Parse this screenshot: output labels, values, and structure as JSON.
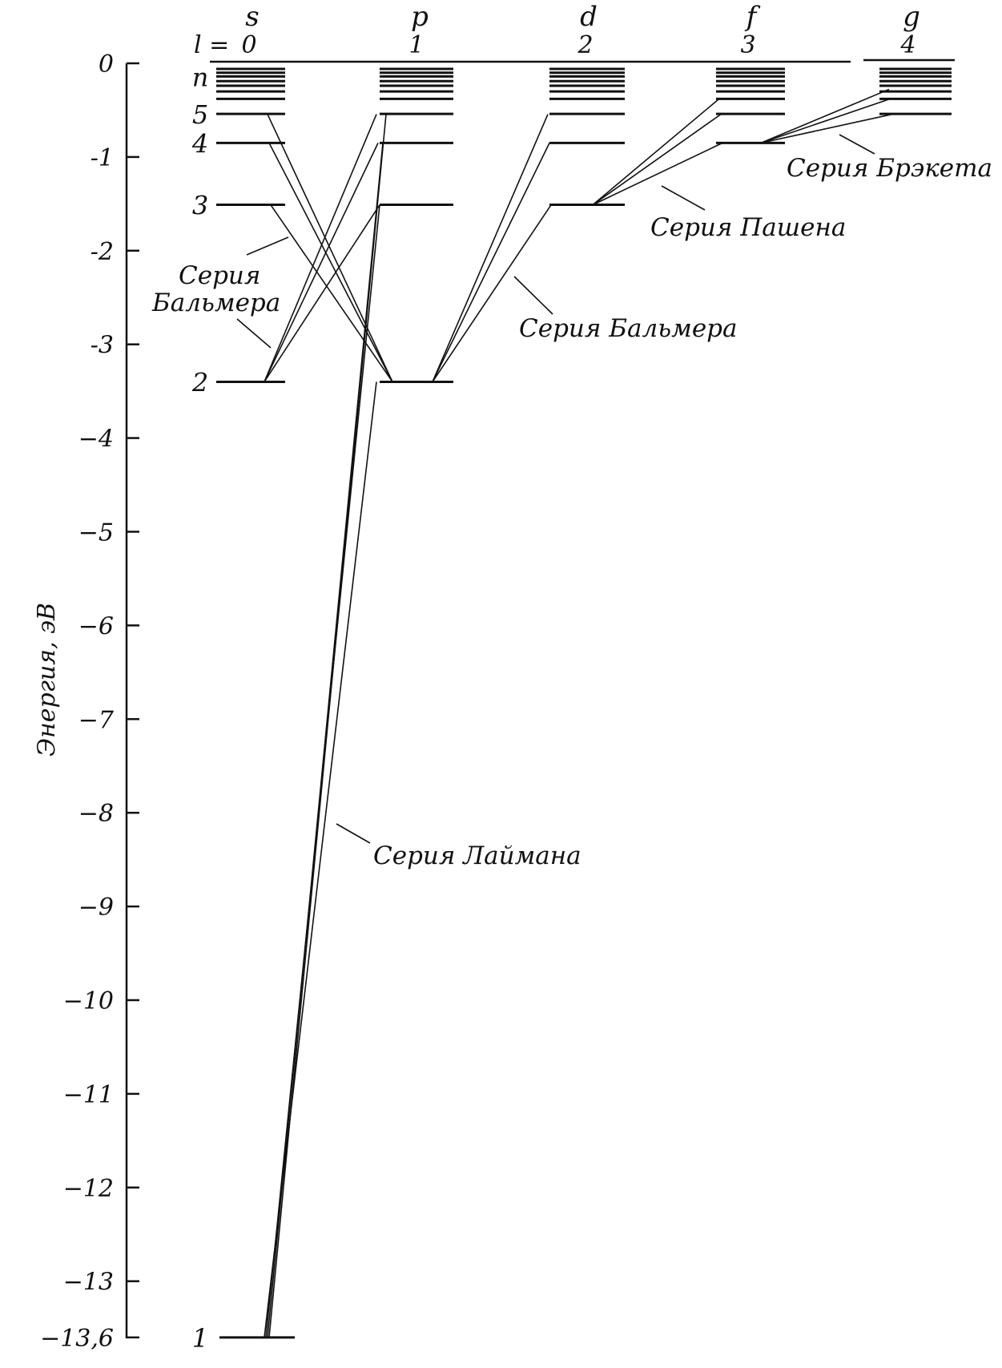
{
  "axis": {
    "title": "Энергия, эВ",
    "ticks": [
      {
        "value": 0,
        "label": "0"
      },
      {
        "value": -1,
        "label": "-1"
      },
      {
        "value": -2,
        "label": "-2"
      },
      {
        "value": -3,
        "label": "-3"
      },
      {
        "value": -4,
        "label": "−4"
      },
      {
        "value": -5,
        "label": "−5"
      },
      {
        "value": -6,
        "label": "−6"
      },
      {
        "value": -7,
        "label": "−7"
      },
      {
        "value": -8,
        "label": "−8"
      },
      {
        "value": -9,
        "label": "−9"
      },
      {
        "value": -10,
        "label": "−10"
      },
      {
        "value": -11,
        "label": "−11"
      },
      {
        "value": -12,
        "label": "−12"
      },
      {
        "value": -13,
        "label": "−13"
      },
      {
        "value": -13.6,
        "label": "−13,6"
      }
    ],
    "range": [
      -13.6,
      0
    ]
  },
  "l_prefix": "l =",
  "orbitals": [
    {
      "letter": "s",
      "l": "0"
    },
    {
      "letter": "p",
      "l": "1"
    },
    {
      "letter": "d",
      "l": "2"
    },
    {
      "letter": "f",
      "l": "3"
    },
    {
      "letter": "g",
      "l": "4"
    }
  ],
  "n_labels": [
    {
      "n": "n",
      "energy": -0.14
    },
    {
      "n": "5",
      "energy": -0.54
    },
    {
      "n": "4",
      "energy": -0.85
    },
    {
      "n": "3",
      "energy": -1.51
    },
    {
      "n": "2",
      "energy": -3.4
    },
    {
      "n": "1",
      "energy": -13.6
    }
  ],
  "levels": [
    {
      "column": 0,
      "n": 1,
      "energy": -13.6
    },
    {
      "column": 0,
      "n": 2,
      "energy": -3.4
    },
    {
      "column": 0,
      "n": 3,
      "energy": -1.51
    },
    {
      "column": 0,
      "n": 4,
      "energy": -0.85
    },
    {
      "column": 0,
      "n": 5,
      "energy": -0.54
    },
    {
      "column": 1,
      "n": 2,
      "energy": -3.4
    },
    {
      "column": 1,
      "n": 3,
      "energy": -1.51
    },
    {
      "column": 1,
      "n": 4,
      "energy": -0.85
    },
    {
      "column": 1,
      "n": 5,
      "energy": -0.54
    },
    {
      "column": 2,
      "n": 3,
      "energy": -1.51
    },
    {
      "column": 2,
      "n": 4,
      "energy": -0.85
    },
    {
      "column": 2,
      "n": 5,
      "energy": -0.54
    },
    {
      "column": 3,
      "n": 4,
      "energy": -0.85
    },
    {
      "column": 3,
      "n": 5,
      "energy": -0.54
    },
    {
      "column": 4,
      "n": 5,
      "energy": -0.54
    }
  ],
  "series": [
    {
      "name": "Серия Лаймана",
      "transitions": [
        {
          "from": [
            1,
            2
          ],
          "to": [
            0,
            1
          ]
        },
        {
          "from": [
            1,
            3
          ],
          "to": [
            0,
            1
          ]
        },
        {
          "from": [
            1,
            4
          ],
          "to": [
            0,
            1
          ]
        },
        {
          "from": [
            1,
            5
          ],
          "to": [
            0,
            1
          ]
        }
      ]
    },
    {
      "name": "Серия Бальмера",
      "transitions": [
        {
          "from": [
            1,
            3
          ],
          "to": [
            0,
            2
          ]
        },
        {
          "from": [
            1,
            4
          ],
          "to": [
            0,
            2
          ]
        },
        {
          "from": [
            1,
            5
          ],
          "to": [
            0,
            2
          ]
        },
        {
          "from": [
            0,
            3
          ],
          "to": [
            1,
            2
          ]
        },
        {
          "from": [
            0,
            4
          ],
          "to": [
            1,
            2
          ]
        },
        {
          "from": [
            0,
            5
          ],
          "to": [
            1,
            2
          ]
        },
        {
          "from": [
            2,
            3
          ],
          "to": [
            1,
            2
          ]
        },
        {
          "from": [
            2,
            4
          ],
          "to": [
            1,
            2
          ]
        },
        {
          "from": [
            2,
            5
          ],
          "to": [
            1,
            2
          ]
        }
      ]
    },
    {
      "name": "Серия Пашена",
      "transitions": [
        {
          "from": [
            3,
            4
          ],
          "to": [
            2,
            3
          ]
        },
        {
          "from": [
            3,
            5
          ],
          "to": [
            2,
            3
          ]
        },
        {
          "from": [
            3,
            6
          ],
          "to": [
            2,
            3
          ]
        }
      ]
    },
    {
      "name": "Серия Брэкета",
      "transitions": [
        {
          "from": [
            4,
            5
          ],
          "to": [
            3,
            4
          ]
        },
        {
          "from": [
            4,
            6
          ],
          "to": [
            3,
            4
          ]
        },
        {
          "from": [
            4,
            7
          ],
          "to": [
            3,
            4
          ]
        }
      ]
    }
  ],
  "labels": {
    "balmer_left_1": "Серия",
    "balmer_left_2": "Бальмера",
    "balmer_right": "Серия  Бальмера",
    "paschen": "Серия  Пашена",
    "brackett": "Серия  Брэкета",
    "lyman": "Серия  Лаймана"
  }
}
